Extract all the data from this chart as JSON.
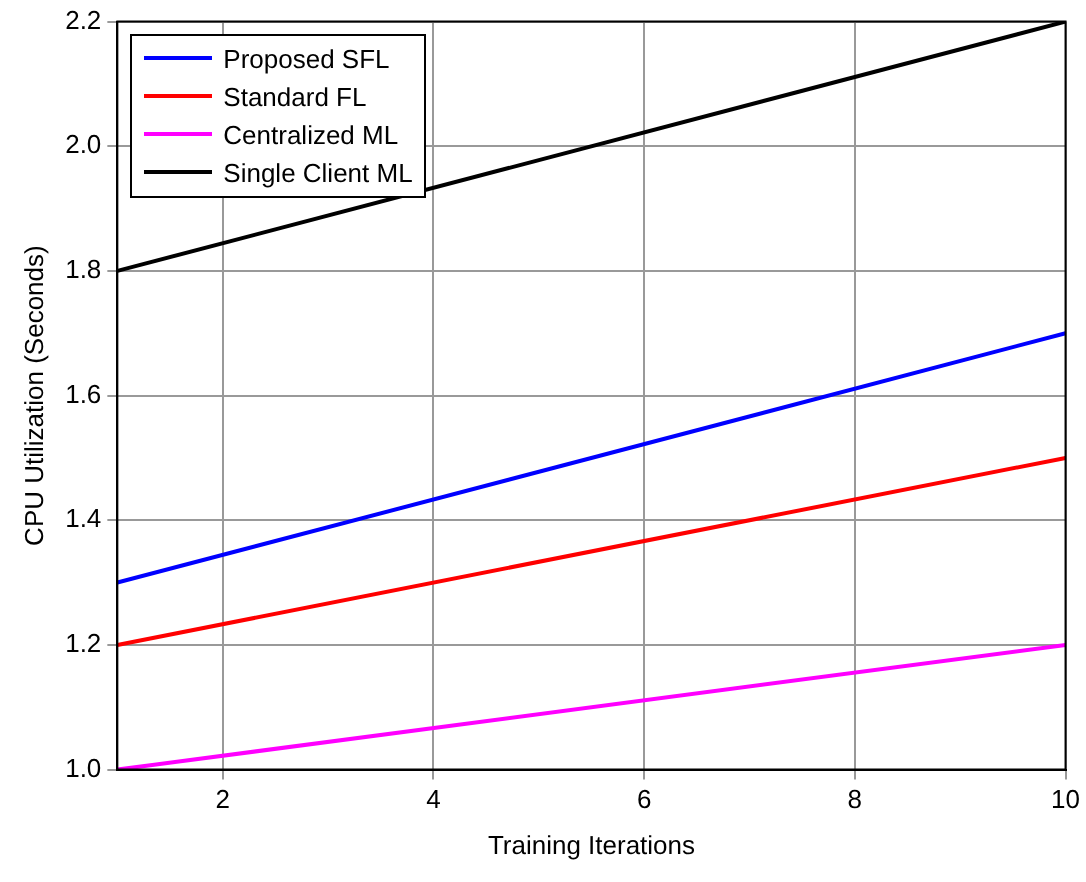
{
  "chart_data": {
    "type": "line",
    "xlabel": "Training Iterations",
    "ylabel": "CPU Utilization (Seconds)",
    "x": [
      1,
      10
    ],
    "series": [
      {
        "name": "Proposed SFL",
        "color": "#0000ff",
        "values": [
          1.3,
          1.7
        ]
      },
      {
        "name": "Standard FL",
        "color": "#ff0000",
        "values": [
          1.2,
          1.5
        ]
      },
      {
        "name": "Centralized ML",
        "color": "#ff00ff",
        "values": [
          1.0,
          1.2
        ]
      },
      {
        "name": "Single Client ML",
        "color": "#000000",
        "values": [
          1.8,
          2.2
        ]
      }
    ],
    "xlim": [
      1,
      10
    ],
    "xticks": [
      2,
      4,
      6,
      8,
      10
    ],
    "ylim": [
      1.0,
      2.2
    ],
    "yticks": [
      {
        "value": 1.0,
        "label": "1.0"
      },
      {
        "value": 1.2,
        "label": "1.2"
      },
      {
        "value": 1.4,
        "label": "1.4"
      },
      {
        "value": 1.6,
        "label": "1.6"
      },
      {
        "value": 1.8,
        "label": "1.8"
      },
      {
        "value": 2.0,
        "label": "2.0"
      },
      {
        "value": 2.2,
        "label": "2.2"
      }
    ],
    "grid": true,
    "legend": "top left",
    "marker": "none",
    "line_style": "solid"
  }
}
